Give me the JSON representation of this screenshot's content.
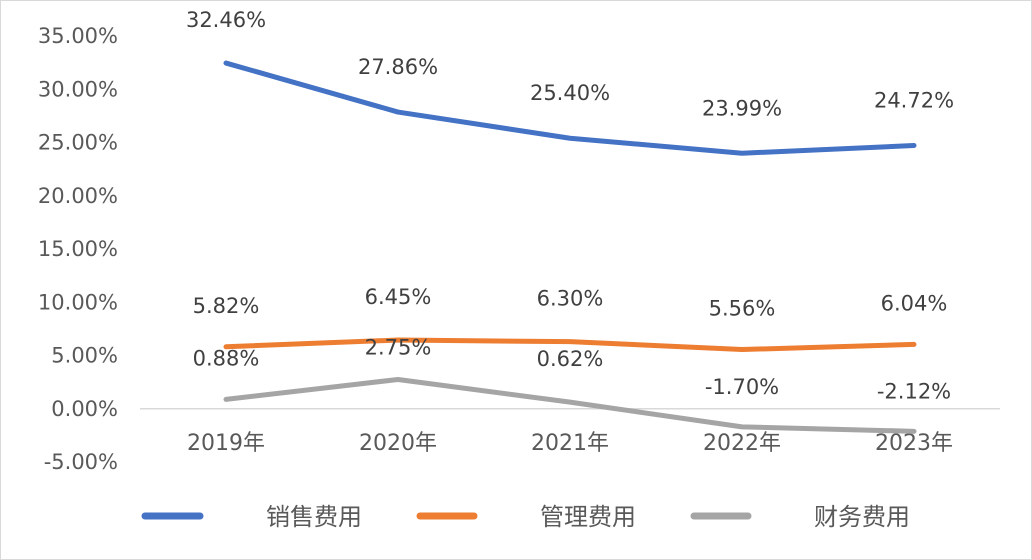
{
  "chart_data": {
    "type": "line",
    "categories": [
      "2019年",
      "2020年",
      "2021年",
      "2022年",
      "2023年"
    ],
    "ylim": [
      -5,
      35
    ],
    "y_ticks": [
      "35.00%",
      "30.00%",
      "25.00%",
      "20.00%",
      "15.00%",
      "10.00%",
      "5.00%",
      "0.00%",
      "-5.00%"
    ],
    "y_tick_values": [
      35,
      30,
      25,
      20,
      15,
      10,
      5,
      0,
      -5
    ],
    "grid": false,
    "legend_position": "bottom",
    "series": [
      {
        "name": "销售费用",
        "color": "#4472c4",
        "values": [
          32.46,
          27.86,
          25.4,
          23.99,
          24.72
        ],
        "labels": [
          "32.46%",
          "27.86%",
          "25.40%",
          "23.99%",
          "24.72%"
        ]
      },
      {
        "name": "管理费用",
        "color": "#ed7d31",
        "values": [
          5.82,
          6.45,
          6.3,
          5.56,
          6.04
        ],
        "labels": [
          "5.82%",
          "6.45%",
          "6.30%",
          "5.56%",
          "6.04%"
        ]
      },
      {
        "name": "财务费用",
        "color": "#a5a5a5",
        "values": [
          0.88,
          2.75,
          0.62,
          -1.7,
          -2.12
        ],
        "labels": [
          "0.88%",
          "2.75%",
          "0.62%",
          "-1.70%",
          "-2.12%"
        ]
      }
    ]
  }
}
